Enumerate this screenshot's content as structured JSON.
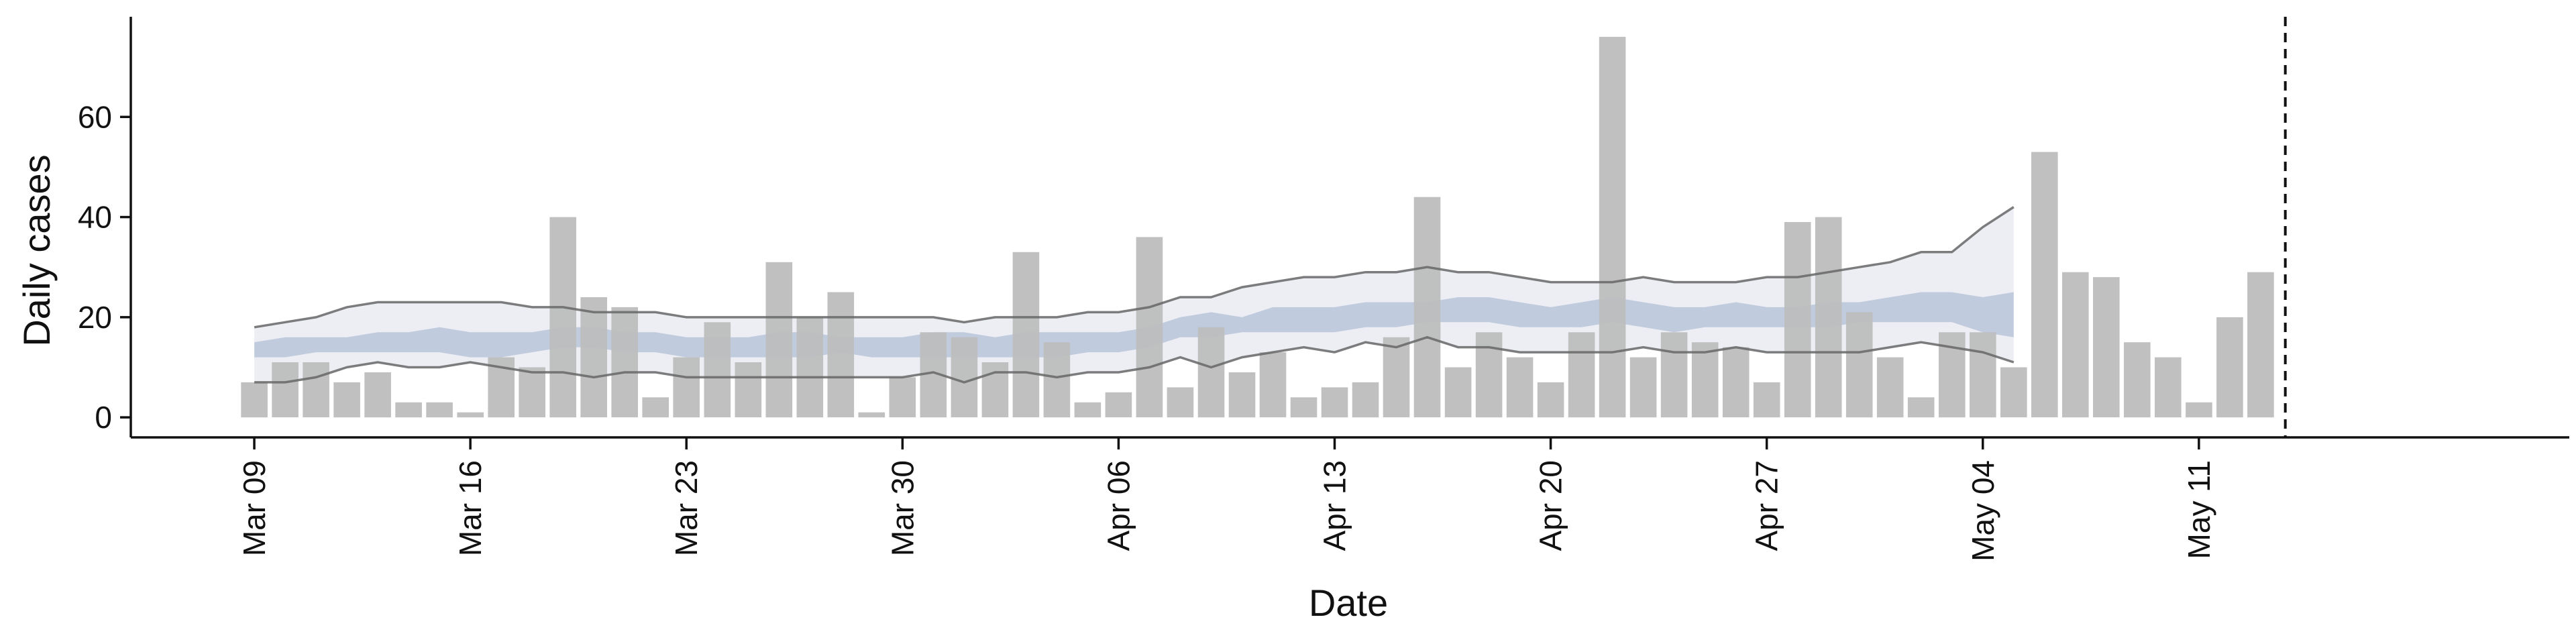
{
  "chart_data": {
    "type": "bar",
    "title": "",
    "xlabel": "Date",
    "ylabel": "Daily cases",
    "ylim": [
      -4,
      80
    ],
    "yticks": [
      0,
      20,
      40,
      60
    ],
    "x_tick_labels": [
      "Mar 09",
      "Mar 16",
      "Mar 23",
      "Mar 30",
      "Apr 06",
      "Apr 13",
      "Apr 20",
      "Apr 27",
      "May 04",
      "May 11"
    ],
    "x_tick_dates": [
      "2020-03-09",
      "2020-03-16",
      "2020-03-23",
      "2020-03-30",
      "2020-04-06",
      "2020-04-13",
      "2020-04-20",
      "2020-04-27",
      "2020-05-04",
      "2020-05-11"
    ],
    "xlim": [
      "2020-03-05",
      "2020-05-23"
    ],
    "x_tick_label_rotation": "vertical",
    "grid": false,
    "vline_date": "2020-05-13",
    "bars": {
      "name": "Daily cases",
      "color": "#bdbdbd",
      "dates": [
        "2020-03-09",
        "2020-03-10",
        "2020-03-11",
        "2020-03-12",
        "2020-03-13",
        "2020-03-14",
        "2020-03-15",
        "2020-03-16",
        "2020-03-17",
        "2020-03-18",
        "2020-03-19",
        "2020-03-20",
        "2020-03-21",
        "2020-03-22",
        "2020-03-23",
        "2020-03-24",
        "2020-03-25",
        "2020-03-26",
        "2020-03-27",
        "2020-03-28",
        "2020-03-29",
        "2020-03-30",
        "2020-03-31",
        "2020-04-01",
        "2020-04-02",
        "2020-04-03",
        "2020-04-04",
        "2020-04-05",
        "2020-04-06",
        "2020-04-07",
        "2020-04-08",
        "2020-04-09",
        "2020-04-10",
        "2020-04-11",
        "2020-04-12",
        "2020-04-13",
        "2020-04-14",
        "2020-04-15",
        "2020-04-16",
        "2020-04-17",
        "2020-04-18",
        "2020-04-19",
        "2020-04-20",
        "2020-04-21",
        "2020-04-22",
        "2020-04-23",
        "2020-04-24",
        "2020-04-25",
        "2020-04-26",
        "2020-04-27",
        "2020-04-28",
        "2020-04-29",
        "2020-04-30",
        "2020-05-01",
        "2020-05-02",
        "2020-05-03",
        "2020-05-04",
        "2020-05-05",
        "2020-05-06",
        "2020-05-07",
        "2020-05-08",
        "2020-05-09",
        "2020-05-10",
        "2020-05-11",
        "2020-05-12",
        "2020-05-13"
      ],
      "values": [
        7,
        11,
        11,
        7,
        9,
        3,
        3,
        1,
        12,
        10,
        40,
        24,
        22,
        4,
        12,
        19,
        11,
        31,
        20,
        25,
        1,
        8,
        17,
        16,
        11,
        33,
        15,
        3,
        5,
        36,
        6,
        18,
        9,
        13,
        4,
        6,
        7,
        16,
        44,
        10,
        17,
        12,
        7,
        17,
        76,
        12,
        17,
        15,
        14,
        7,
        39,
        40,
        21,
        12,
        4,
        17,
        17,
        10,
        53,
        29,
        28,
        15,
        12,
        3,
        20,
        29
      ]
    },
    "band": {
      "dates": [
        "2020-03-09",
        "2020-03-10",
        "2020-03-11",
        "2020-03-12",
        "2020-03-13",
        "2020-03-14",
        "2020-03-15",
        "2020-03-16",
        "2020-03-17",
        "2020-03-18",
        "2020-03-19",
        "2020-03-20",
        "2020-03-21",
        "2020-03-22",
        "2020-03-23",
        "2020-03-24",
        "2020-03-25",
        "2020-03-26",
        "2020-03-27",
        "2020-03-28",
        "2020-03-29",
        "2020-03-30",
        "2020-03-31",
        "2020-04-01",
        "2020-04-02",
        "2020-04-03",
        "2020-04-04",
        "2020-04-05",
        "2020-04-06",
        "2020-04-07",
        "2020-04-08",
        "2020-04-09",
        "2020-04-10",
        "2020-04-11",
        "2020-04-12",
        "2020-04-13",
        "2020-04-14",
        "2020-04-15",
        "2020-04-16",
        "2020-04-17",
        "2020-04-18",
        "2020-04-19",
        "2020-04-20",
        "2020-04-21",
        "2020-04-22",
        "2020-04-23",
        "2020-04-24",
        "2020-04-25",
        "2020-04-26",
        "2020-04-27",
        "2020-04-28",
        "2020-04-29",
        "2020-04-30",
        "2020-05-01",
        "2020-05-02",
        "2020-05-03",
        "2020-05-04",
        "2020-05-05"
      ],
      "outer_upper": [
        18,
        19,
        20,
        22,
        23,
        23,
        23,
        23,
        23,
        22,
        22,
        21,
        21,
        21,
        20,
        20,
        20,
        20,
        20,
        20,
        20,
        20,
        20,
        19,
        20,
        20,
        20,
        21,
        21,
        22,
        24,
        24,
        26,
        27,
        28,
        28,
        29,
        29,
        30,
        29,
        29,
        28,
        27,
        27,
        27,
        28,
        27,
        27,
        27,
        28,
        28,
        29,
        30,
        31,
        33,
        33,
        38,
        42
      ],
      "outer_lower": [
        7,
        7,
        8,
        10,
        11,
        10,
        10,
        11,
        10,
        9,
        9,
        8,
        9,
        9,
        8,
        8,
        8,
        8,
        8,
        8,
        8,
        8,
        9,
        7,
        9,
        9,
        8,
        9,
        9,
        10,
        12,
        10,
        12,
        13,
        14,
        13,
        15,
        14,
        16,
        14,
        14,
        13,
        13,
        13,
        13,
        14,
        13,
        13,
        14,
        13,
        13,
        13,
        13,
        14,
        15,
        14,
        13,
        11
      ],
      "inner_upper": [
        15,
        16,
        16,
        16,
        17,
        17,
        18,
        17,
        17,
        17,
        18,
        18,
        17,
        17,
        16,
        16,
        16,
        17,
        17,
        16,
        16,
        16,
        17,
        17,
        16,
        17,
        17,
        17,
        17,
        18,
        20,
        21,
        20,
        22,
        22,
        22,
        23,
        23,
        23,
        24,
        24,
        23,
        22,
        23,
        24,
        23,
        22,
        22,
        23,
        22,
        22,
        23,
        23,
        24,
        25,
        25,
        24,
        25
      ],
      "inner_lower": [
        12,
        12,
        13,
        13,
        13,
        13,
        13,
        12,
        12,
        13,
        14,
        14,
        13,
        13,
        12,
        12,
        12,
        12,
        12,
        13,
        12,
        12,
        12,
        12,
        12,
        12,
        12,
        13,
        13,
        14,
        16,
        16,
        17,
        17,
        17,
        17,
        18,
        18,
        19,
        19,
        19,
        18,
        18,
        18,
        19,
        18,
        17,
        18,
        18,
        18,
        18,
        18,
        19,
        19,
        19,
        19,
        17,
        16
      ]
    },
    "colors": {
      "bar": "#bdbdbd",
      "inner_band": "#8e9fc4",
      "outer_band": "#e9ebf2",
      "band_edge": "#666666",
      "axis": "#111111",
      "vline": "#111111"
    }
  }
}
